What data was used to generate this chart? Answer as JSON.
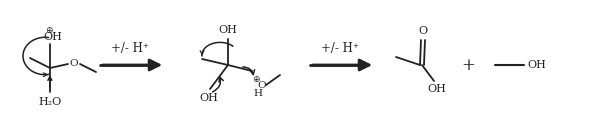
{
  "bg_color": "#ffffff",
  "line_color": "#222222",
  "figsize": [
    5.92,
    1.3
  ],
  "dpi": 100,
  "arrow1_label": "+/- H⁺",
  "arrow2_label": "+/- H⁺",
  "plus_label": "+",
  "h2o_label": "H₂O"
}
